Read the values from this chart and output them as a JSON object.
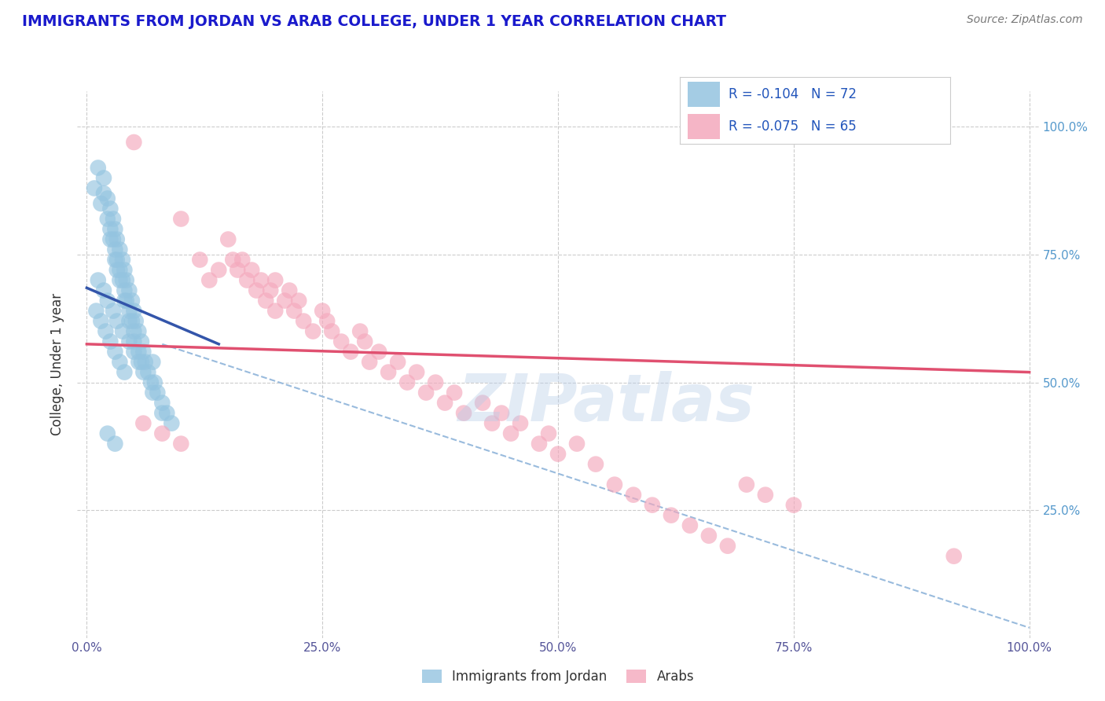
{
  "title": "IMMIGRANTS FROM JORDAN VS ARAB COLLEGE, UNDER 1 YEAR CORRELATION CHART",
  "source": "Source: ZipAtlas.com",
  "ylabel": "College, Under 1 year",
  "x_tick_labels": [
    "0.0%",
    "25.0%",
    "50.0%",
    "75.0%",
    "100.0%"
  ],
  "x_tick_values": [
    0.0,
    0.25,
    0.5,
    0.75,
    1.0
  ],
  "y_tick_labels": [
    "25.0%",
    "50.0%",
    "75.0%",
    "100.0%"
  ],
  "y_tick_values": [
    0.25,
    0.5,
    0.75,
    1.0
  ],
  "legend_labels": [
    "Immigrants from Jordan",
    "Arabs"
  ],
  "legend_R": [
    "-0.104",
    "-0.075"
  ],
  "legend_N": [
    "72",
    "65"
  ],
  "blue_color": "#94c4e0",
  "pink_color": "#f4a8bc",
  "blue_line_color": "#3355aa",
  "pink_line_color": "#e05070",
  "dashed_line_color": "#99bbdd",
  "title_color": "#1a1acc",
  "source_color": "#777777",
  "blue_points_x": [
    0.008,
    0.012,
    0.015,
    0.018,
    0.018,
    0.022,
    0.022,
    0.025,
    0.025,
    0.025,
    0.028,
    0.028,
    0.03,
    0.03,
    0.03,
    0.032,
    0.032,
    0.032,
    0.035,
    0.035,
    0.035,
    0.038,
    0.038,
    0.04,
    0.04,
    0.04,
    0.042,
    0.042,
    0.045,
    0.045,
    0.045,
    0.048,
    0.048,
    0.05,
    0.05,
    0.05,
    0.052,
    0.055,
    0.055,
    0.058,
    0.058,
    0.06,
    0.062,
    0.065,
    0.068,
    0.07,
    0.072,
    0.075,
    0.08,
    0.085,
    0.09,
    0.01,
    0.015,
    0.02,
    0.025,
    0.03,
    0.035,
    0.04,
    0.012,
    0.018,
    0.022,
    0.028,
    0.032,
    0.038,
    0.045,
    0.05,
    0.055,
    0.06,
    0.07,
    0.08,
    0.022,
    0.03
  ],
  "blue_points_y": [
    0.88,
    0.92,
    0.85,
    0.9,
    0.87,
    0.82,
    0.86,
    0.84,
    0.8,
    0.78,
    0.82,
    0.78,
    0.76,
    0.8,
    0.74,
    0.78,
    0.74,
    0.72,
    0.76,
    0.72,
    0.7,
    0.74,
    0.7,
    0.72,
    0.68,
    0.66,
    0.7,
    0.66,
    0.68,
    0.64,
    0.62,
    0.66,
    0.62,
    0.64,
    0.6,
    0.58,
    0.62,
    0.6,
    0.56,
    0.58,
    0.54,
    0.56,
    0.54,
    0.52,
    0.5,
    0.54,
    0.5,
    0.48,
    0.46,
    0.44,
    0.42,
    0.64,
    0.62,
    0.6,
    0.58,
    0.56,
    0.54,
    0.52,
    0.7,
    0.68,
    0.66,
    0.64,
    0.62,
    0.6,
    0.58,
    0.56,
    0.54,
    0.52,
    0.48,
    0.44,
    0.4,
    0.38
  ],
  "pink_points_x": [
    0.05,
    0.1,
    0.12,
    0.13,
    0.14,
    0.15,
    0.155,
    0.16,
    0.165,
    0.17,
    0.175,
    0.18,
    0.185,
    0.19,
    0.195,
    0.2,
    0.2,
    0.21,
    0.215,
    0.22,
    0.225,
    0.23,
    0.24,
    0.25,
    0.255,
    0.26,
    0.27,
    0.28,
    0.29,
    0.295,
    0.3,
    0.31,
    0.32,
    0.33,
    0.34,
    0.35,
    0.36,
    0.37,
    0.38,
    0.39,
    0.4,
    0.42,
    0.43,
    0.44,
    0.45,
    0.46,
    0.48,
    0.49,
    0.5,
    0.52,
    0.54,
    0.56,
    0.58,
    0.6,
    0.62,
    0.64,
    0.66,
    0.68,
    0.7,
    0.72,
    0.75,
    0.92,
    0.06,
    0.08,
    0.1
  ],
  "pink_points_y": [
    0.97,
    0.82,
    0.74,
    0.7,
    0.72,
    0.78,
    0.74,
    0.72,
    0.74,
    0.7,
    0.72,
    0.68,
    0.7,
    0.66,
    0.68,
    0.7,
    0.64,
    0.66,
    0.68,
    0.64,
    0.66,
    0.62,
    0.6,
    0.64,
    0.62,
    0.6,
    0.58,
    0.56,
    0.6,
    0.58,
    0.54,
    0.56,
    0.52,
    0.54,
    0.5,
    0.52,
    0.48,
    0.5,
    0.46,
    0.48,
    0.44,
    0.46,
    0.42,
    0.44,
    0.4,
    0.42,
    0.38,
    0.4,
    0.36,
    0.38,
    0.34,
    0.3,
    0.28,
    0.26,
    0.24,
    0.22,
    0.2,
    0.18,
    0.3,
    0.28,
    0.26,
    0.16,
    0.42,
    0.4,
    0.38
  ],
  "blue_line_x": [
    0.0,
    0.14
  ],
  "blue_line_y": [
    0.685,
    0.575
  ],
  "pink_line_x": [
    0.0,
    1.0
  ],
  "pink_line_y": [
    0.575,
    0.52
  ],
  "dashed_line_x": [
    0.08,
    1.0
  ],
  "dashed_line_y": [
    0.575,
    0.02
  ],
  "xlim": [
    -0.01,
    1.01
  ],
  "ylim": [
    0.0,
    1.07
  ]
}
